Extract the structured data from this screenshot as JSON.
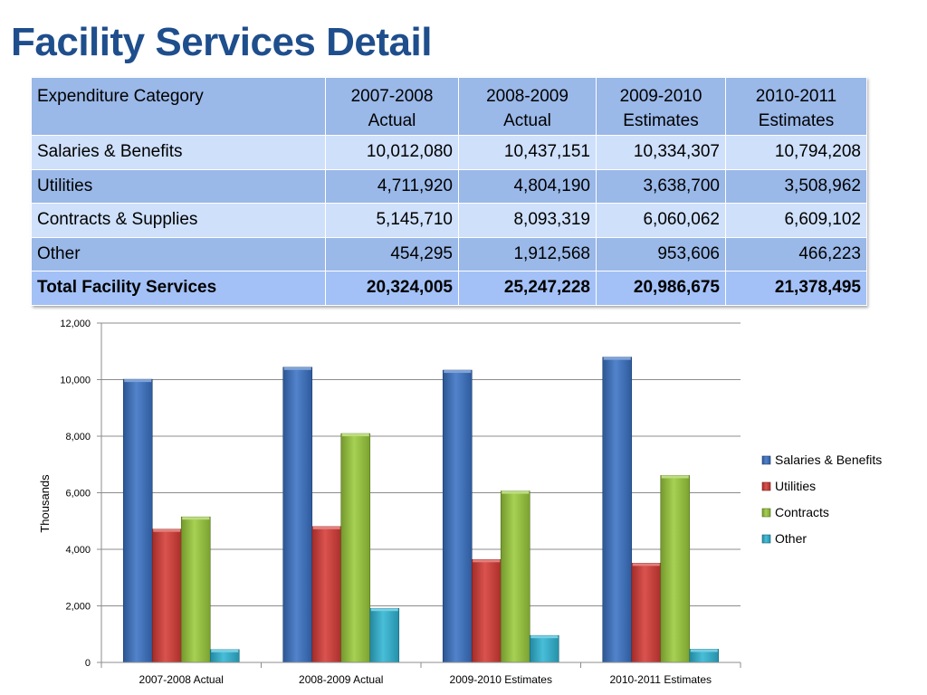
{
  "title": "Facility Services Detail",
  "table": {
    "headers": [
      "Expenditure Category",
      "2007-2008\nActual",
      "2008-2009\nActual",
      "2009-2010\nEstimates",
      "2010-2011\nEstimates"
    ],
    "rows": [
      {
        "label": "Salaries & Benefits",
        "values": [
          "10,012,080",
          "10,437,151",
          "10,334,307",
          "10,794,208"
        ]
      },
      {
        "label": "Utilities",
        "values": [
          "4,711,920",
          "4,804,190",
          "3,638,700",
          "3,508,962"
        ]
      },
      {
        "label": "Contracts & Supplies",
        "values": [
          "5,145,710",
          "8,093,319",
          "6,060,062",
          "6,609,102"
        ]
      },
      {
        "label": "Other",
        "values": [
          "454,295",
          "1,912,568",
          "953,606",
          "466,223"
        ]
      }
    ],
    "total": {
      "label": "Total Facility Services",
      "values": [
        "20,324,005",
        "25,247,228",
        "20,986,675",
        "21,378,495"
      ]
    }
  },
  "chart_data": {
    "type": "bar",
    "categories": [
      "2007-2008 Actual",
      "2008-2009 Actual",
      "2009-2010 Estimates",
      "2010-2011 Estimates"
    ],
    "series": [
      {
        "name": "Salaries & Benefits",
        "color": "#3a72c4",
        "values": [
          10012.08,
          10437.151,
          10334.307,
          10794.208
        ]
      },
      {
        "name": "Utilities",
        "color": "#d63b36",
        "values": [
          4711.92,
          4804.19,
          3638.7,
          3508.962
        ]
      },
      {
        "name": "Contracts",
        "color": "#9acb3c",
        "values": [
          5145.71,
          8093.319,
          6060.062,
          6609.102
        ]
      },
      {
        "name": "Other",
        "color": "#2fb5d4",
        "values": [
          454.295,
          1912.568,
          953.606,
          466.223
        ]
      }
    ],
    "ylabel": "Thousands",
    "ylim": [
      0,
      12000
    ],
    "yticks": [
      0,
      2000,
      4000,
      6000,
      8000,
      10000,
      12000
    ],
    "ytick_labels": [
      "0",
      "2,000",
      "4,000",
      "6,000",
      "8,000",
      "10,000",
      "12,000"
    ],
    "grid": true,
    "legend": "right"
  }
}
